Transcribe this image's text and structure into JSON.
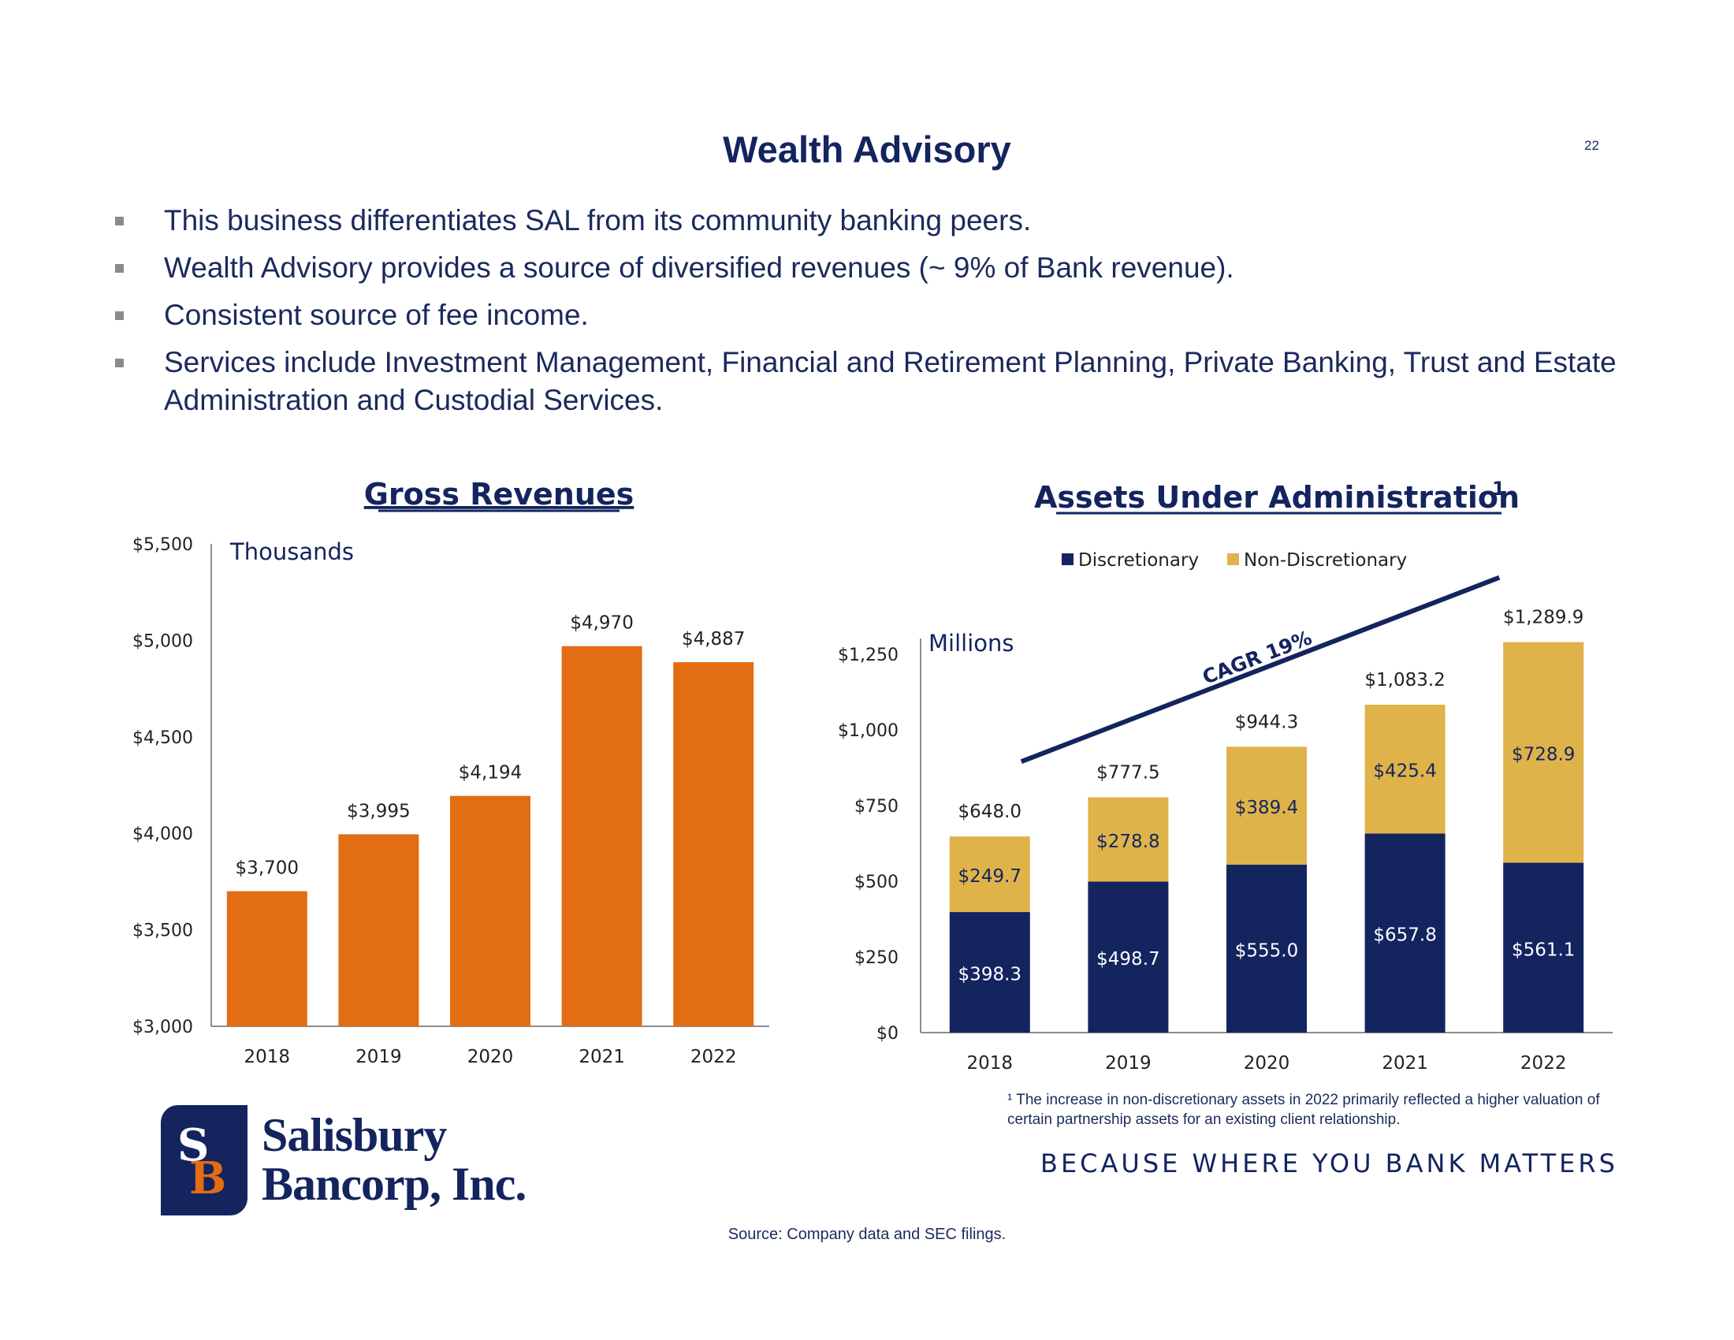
{
  "page": {
    "title": "Wealth Advisory",
    "page_number": "22",
    "bullets": [
      "This business differentiates SAL from its community banking peers.",
      "Wealth Advisory provides a source of diversified revenues (~ 9% of Bank revenue).",
      "Consistent source of fee income.",
      "Services include Investment Management, Financial and Retirement Planning, Private Banking, Trust and Estate Administration and Custodial Services."
    ],
    "footnote": "¹ The increase in non-discretionary assets in 2022 primarily reflected a higher valuation of certain partnership assets for an existing client relationship.",
    "tagline": "BECAUSE WHERE YOU BANK MATTERS",
    "source": "Source: Company data and SEC filings.",
    "logo": {
      "line1": "Salisbury",
      "line2": "Bancorp, Inc.",
      "mark_s": "S",
      "mark_b": "B"
    },
    "colors": {
      "navy": "#13245f",
      "orange": "#e26d12",
      "gold": "#dfb34a",
      "axis": "#8c8c8c"
    }
  },
  "chart_data": [
    {
      "type": "bar",
      "title": "Gross Revenues",
      "unit_label": "Thousands",
      "categories": [
        "2018",
        "2019",
        "2020",
        "2021",
        "2022"
      ],
      "values": [
        3700,
        3995,
        4194,
        4970,
        4887
      ],
      "value_labels": [
        "$3,700",
        "$3,995",
        "$4,194",
        "$4,970",
        "$4,887"
      ],
      "ylim": [
        3000,
        5500
      ],
      "yticks": [
        3000,
        3500,
        4000,
        4500,
        5000,
        5500
      ],
      "ytick_labels": [
        "$3,000",
        "$3,500",
        "$4,000",
        "$4,500",
        "$5,000",
        "$5,500"
      ],
      "grid": false,
      "color": "#e26d12"
    },
    {
      "type": "bar",
      "stacked": true,
      "title": "Assets Under Administration",
      "title_superscript": "1",
      "unit_label": "Millions",
      "categories": [
        "2018",
        "2019",
        "2020",
        "2021",
        "2022"
      ],
      "series": [
        {
          "name": "Discretionary",
          "values": [
            398.3,
            498.7,
            555.0,
            657.8,
            561.1
          ],
          "labels": [
            "$398.3",
            "$498.7",
            "$555.0",
            "$657.8",
            "$561.1"
          ],
          "color": "#13245f"
        },
        {
          "name": "Non-Discretionary",
          "values": [
            249.7,
            278.8,
            389.4,
            425.4,
            728.9
          ],
          "labels": [
            "$249.7",
            "$278.8",
            "$389.4",
            "$425.4",
            "$728.9"
          ],
          "color": "#dfb34a"
        }
      ],
      "totals": [
        648.0,
        777.5,
        944.3,
        1083.2,
        1289.9
      ],
      "total_labels": [
        "$648.0",
        "$777.5",
        "$944.3",
        "$1,083.2",
        "$1,289.9"
      ],
      "ylim": [
        0,
        1250
      ],
      "yticks": [
        0,
        250,
        500,
        750,
        1000,
        1250
      ],
      "ytick_labels": [
        "$0",
        "$250",
        "$500",
        "$750",
        "$1,000",
        "$1,250"
      ],
      "legend_position": "top",
      "grid": false,
      "annotation": "CAGR 19%"
    }
  ]
}
